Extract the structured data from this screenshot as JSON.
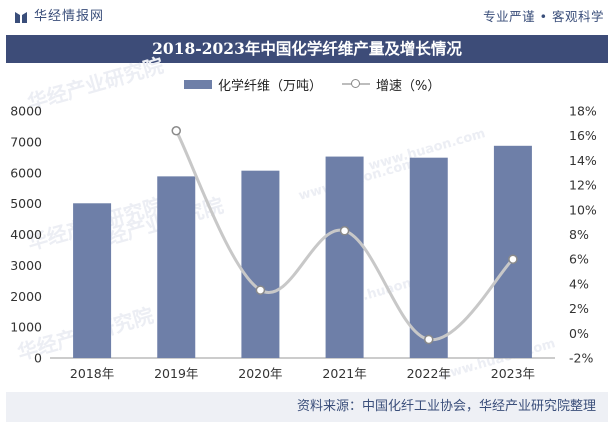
{
  "brand": {
    "logo_text": "华经情报网",
    "slogan": "专业严谨 • 客观科学"
  },
  "title": "2018-2023年中国化学纤维产量及增长情况",
  "legend": {
    "bar_label": "化学纤维（万吨）",
    "line_label": "增速（%）"
  },
  "source": "资料来源：中国化纤工业协会，华经产业研究院整理",
  "watermark": {
    "text_cn": "华经产业研究院",
    "text_url": "www.huaon.com"
  },
  "colors": {
    "bar": "#6e7fa8",
    "line": "#c8c8c8",
    "marker_stroke": "#8a8a8a",
    "title_band": "#3d4c78",
    "brand_text": "#3a4e7a"
  },
  "chart_data": {
    "type": "bar",
    "categories": [
      "2018年",
      "2019年",
      "2020年",
      "2021年",
      "2022年",
      "2023年"
    ],
    "series": [
      {
        "name": "化学纤维（万吨）",
        "type": "bar",
        "axis": "left",
        "values": [
          5011,
          5883,
          6067,
          6524,
          6488,
          6873
        ]
      },
      {
        "name": "增速（%）",
        "type": "line",
        "smooth": true,
        "axis": "right",
        "values": [
          null,
          16.4,
          3.5,
          8.3,
          -0.5,
          6.0
        ]
      }
    ],
    "y_left": {
      "min": 0,
      "max": 8000,
      "ticks": [
        0,
        1000,
        2000,
        3000,
        4000,
        5000,
        6000,
        7000,
        8000
      ]
    },
    "y_right": {
      "min": -2,
      "max": 18,
      "ticks": [
        -2,
        0,
        2,
        4,
        6,
        8,
        10,
        12,
        14,
        16,
        18
      ],
      "tick_labels": [
        "-2%",
        "0%",
        "2%",
        "4%",
        "6%",
        "8%",
        "10%",
        "12%",
        "14%",
        "16%",
        "18%"
      ]
    },
    "grid": false,
    "legend_position": "top"
  }
}
